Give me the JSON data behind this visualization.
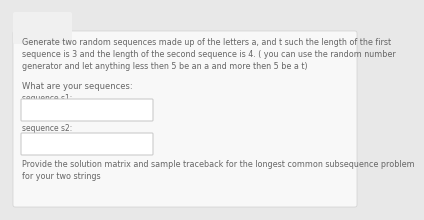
{
  "background_color": "#e8e8e8",
  "card_color": "#f8f8f8",
  "tab_color": "#f0f0f0",
  "text_color": "#666666",
  "box_color": "#ffffff",
  "box_edge_color": "#cccccc",
  "body_text": "Generate two random sequences made up of the letters a, and t such the length of the first\nsequence is 3 and the length of the second sequence is 4. ( you can use the random number\ngenerator and let anything less then 5 be an a and more then 5 be a t)",
  "what_text": "What are your sequences:",
  "s1_label": "sequence s1:",
  "s2_label": "sequence s2:",
  "footer_text": "Provide the solution matrix and sample traceback for the longest common subsequence problem\nfor your two strings",
  "body_fontsize": 5.8,
  "label_fontsize": 5.5,
  "what_fontsize": 6.0,
  "footer_fontsize": 5.8
}
